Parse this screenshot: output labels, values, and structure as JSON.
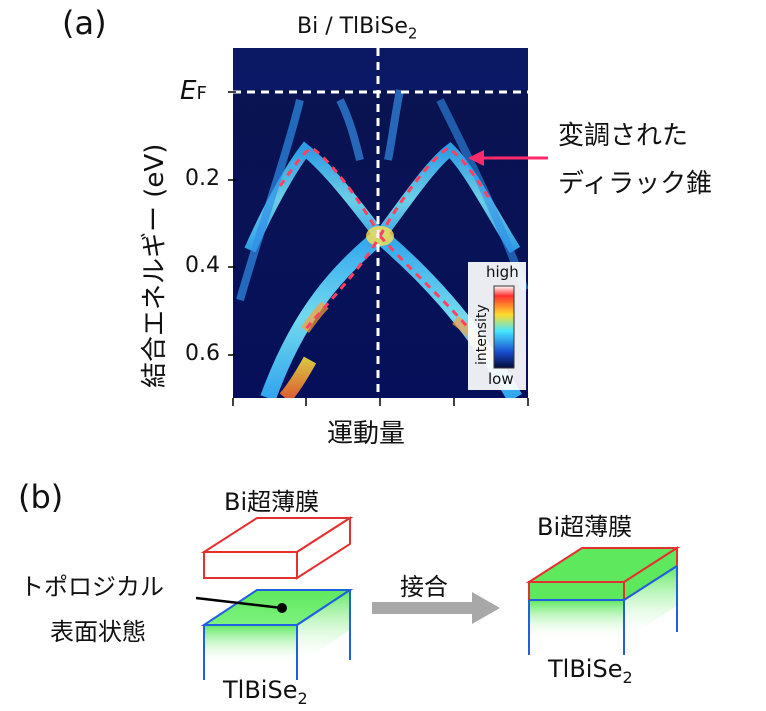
{
  "panel_a": {
    "label": "(a)",
    "title_main": "Bi / TlBiSe",
    "title_sub": "2",
    "ylabel": "結合エネルギー (eV)",
    "ef_main": "E",
    "ef_sub": "F",
    "xlabel": "運動量",
    "annotation_line1": "変調された",
    "annotation_line2": "ディラック錐",
    "colorbar_high": "high",
    "colorbar_low": "low",
    "colorbar_label": "intensity"
  },
  "chart_data": {
    "type": "heatmap",
    "title": "Bi / TlBiSe2",
    "ylabel": "結合エネルギー (eV)",
    "xlabel": "運動量",
    "yticks": [
      0.2,
      0.4,
      0.6
    ],
    "ylim": [
      0.7,
      -0.07
    ],
    "ef_energy": 0.0,
    "dirac_point_energy": 0.33,
    "colorbar": {
      "high": "high",
      "low": "low",
      "label": "intensity"
    }
  },
  "panel_b": {
    "label": "(b)",
    "film_label": "Bi超薄膜",
    "film_label_right": "Bi超薄膜",
    "surface_line1": "トポロジカル",
    "surface_line2": "表面状態",
    "arrow_label": "接合",
    "substrate_main": "TlBiSe",
    "substrate_sub": "2",
    "substrate_main_right": "TlBiSe",
    "substrate_sub_right": "2"
  },
  "colors": {
    "film_edge": "#e53030",
    "substrate_edge": "#2060e0",
    "surface_green": "#5ee85e",
    "arrow_gray": "#a8a8a8",
    "dirac_dash": "#ff4060",
    "annotation_arrow": "#ff2a6a"
  }
}
